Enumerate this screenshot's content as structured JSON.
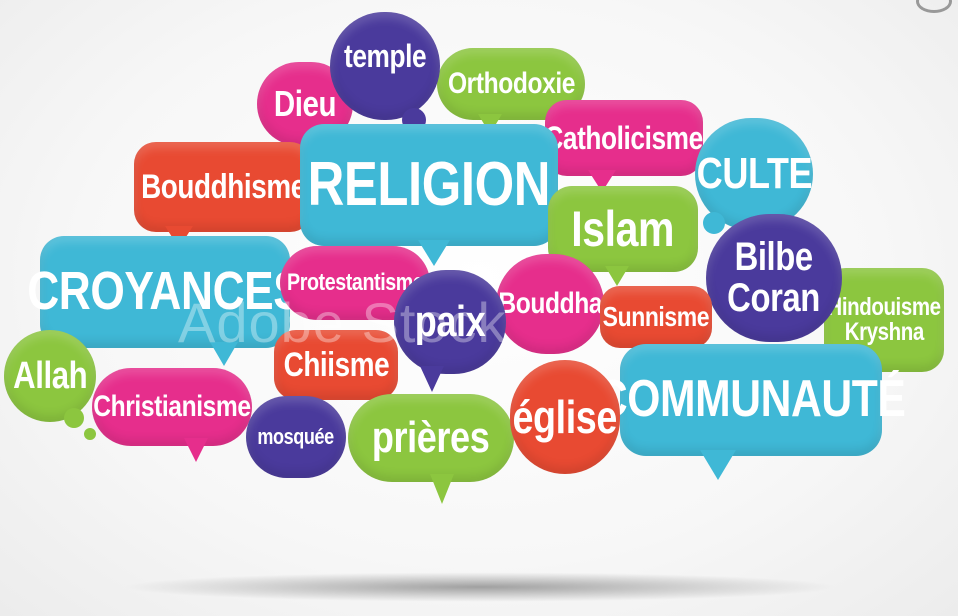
{
  "watermark": "Adobe Stock",
  "bubbles": {
    "temple": "temple",
    "dieu": "Dieu",
    "orthodoxie": "Orthodoxie",
    "catholicisme": "Catholicisme",
    "culte": "CULTE",
    "bouddhisme": "Bouddhisme",
    "religion": "RELIGION",
    "islam": "Islam",
    "croyances": "CROYANCES",
    "protestantisme": "Protestantisme",
    "bilbe": "Bilbe",
    "coran": "Coran",
    "hindouisme": "Hindouisme",
    "kryshna": "Kryshna",
    "paix": "paix",
    "bouddha": "Bouddha",
    "sunnisme": "Sunnisme",
    "allah": "Allah",
    "chiisme": "Chiisme",
    "christianisme": "Christianisme",
    "mosquee": "mosquée",
    "prieres": "prières",
    "eglise": "église",
    "communaute": "COMMUNAUTÉ"
  },
  "colors": {
    "blue": "#3fb8d6",
    "pink": "#e62e8c",
    "purple": "#4a3a9c",
    "green": "#8cc63f",
    "red": "#e84a32"
  }
}
